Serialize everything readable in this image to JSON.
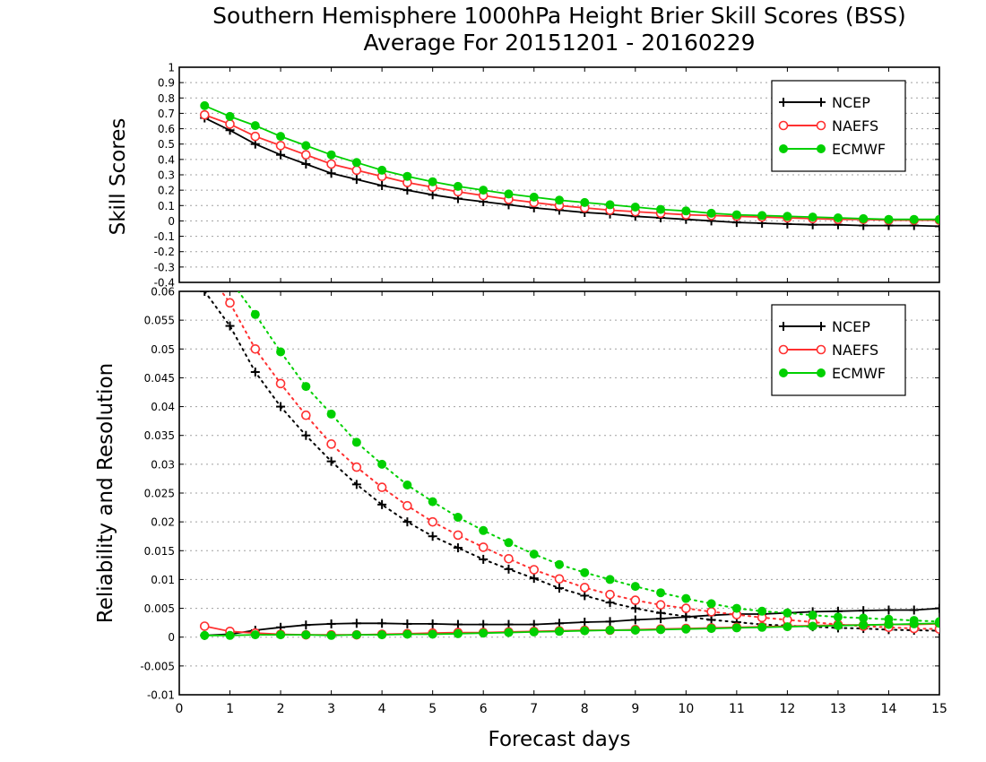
{
  "title_line1": "Southern Hemisphere 1000hPa Height Brier Skill Scores (BSS)",
  "title_line2": "Average For 20151201 - 20160229",
  "xlabel": "Forecast days",
  "colors": {
    "NCEP": "#000000",
    "NAEFS": "#ff3030",
    "ECMWF": "#00d000",
    "grid": "#a0a0a0"
  },
  "chart_data": [
    {
      "type": "line",
      "ylabel": "Skill Scores",
      "xlim": [
        0,
        15
      ],
      "ylim": [
        -0.4,
        1
      ],
      "xticks": [
        "0",
        "1",
        "2",
        "3",
        "4",
        "5",
        "6",
        "7",
        "8",
        "9",
        "10",
        "11",
        "12",
        "13",
        "14",
        "15"
      ],
      "yticks": [
        "-0.4",
        "-0.3",
        "-0.2",
        "-0.1",
        "0",
        "0.1",
        "0.2",
        "0.3",
        "0.4",
        "0.5",
        "0.6",
        "0.7",
        "0.8",
        "0.9",
        "1"
      ],
      "grid": true,
      "legend_position": "top-right",
      "legend": [
        "NCEP",
        "NAEFS",
        "ECMWF"
      ],
      "x": [
        0.5,
        1,
        1.5,
        2,
        2.5,
        3,
        3.5,
        4,
        4.5,
        5,
        5.5,
        6,
        6.5,
        7,
        7.5,
        8,
        8.5,
        9,
        9.5,
        10,
        10.5,
        11,
        11.5,
        12,
        12.5,
        13,
        13.5,
        14,
        14.5,
        15
      ],
      "series": [
        {
          "name": "NCEP",
          "style": "solid-plus",
          "values": [
            0.67,
            0.59,
            0.5,
            0.43,
            0.37,
            0.31,
            0.27,
            0.23,
            0.2,
            0.17,
            0.145,
            0.125,
            0.105,
            0.085,
            0.07,
            0.055,
            0.045,
            0.03,
            0.02,
            0.01,
            0.0,
            -0.01,
            -0.015,
            -0.02,
            -0.025,
            -0.025,
            -0.03,
            -0.03,
            -0.03,
            -0.035
          ]
        },
        {
          "name": "NAEFS",
          "style": "solid-circle",
          "values": [
            0.69,
            0.63,
            0.55,
            0.49,
            0.43,
            0.37,
            0.33,
            0.29,
            0.25,
            0.22,
            0.19,
            0.165,
            0.14,
            0.12,
            0.1,
            0.085,
            0.07,
            0.06,
            0.05,
            0.04,
            0.035,
            0.03,
            0.025,
            0.02,
            0.015,
            0.01,
            0.01,
            0.005,
            0.005,
            0.005
          ]
        },
        {
          "name": "ECMWF",
          "style": "solid-dot",
          "values": [
            0.75,
            0.68,
            0.62,
            0.55,
            0.49,
            0.43,
            0.38,
            0.33,
            0.29,
            0.255,
            0.225,
            0.2,
            0.175,
            0.155,
            0.135,
            0.12,
            0.105,
            0.09,
            0.075,
            0.065,
            0.05,
            0.04,
            0.035,
            0.03,
            0.025,
            0.02,
            0.015,
            0.01,
            0.01,
            0.01
          ]
        }
      ]
    },
    {
      "type": "line",
      "ylabel": "Reliability and Resolution",
      "xlim": [
        0,
        15
      ],
      "ylim": [
        -0.01,
        0.06
      ],
      "xticks": [
        "0",
        "1",
        "2",
        "3",
        "4",
        "5",
        "6",
        "7",
        "8",
        "9",
        "10",
        "11",
        "12",
        "13",
        "14",
        "15"
      ],
      "yticks": [
        "-0.01",
        "-0.005",
        "0",
        "0.005",
        "0.01",
        "0.015",
        "0.02",
        "0.025",
        "0.03",
        "0.035",
        "0.04",
        "0.045",
        "0.05",
        "0.055",
        "0.06"
      ],
      "grid": true,
      "legend_position": "top-right",
      "legend": [
        "NCEP",
        "NAEFS",
        "ECMWF"
      ],
      "x": [
        0.5,
        1,
        1.5,
        2,
        2.5,
        3,
        3.5,
        4,
        4.5,
        5,
        5.5,
        6,
        6.5,
        7,
        7.5,
        8,
        8.5,
        9,
        9.5,
        10,
        10.5,
        11,
        11.5,
        12,
        12.5,
        13,
        13.5,
        14,
        14.5,
        15
      ],
      "series": [
        {
          "name": "NCEP",
          "kind": "reliability",
          "style": "solid-plus",
          "values": [
            0.0003,
            0.0005,
            0.0012,
            0.0017,
            0.0021,
            0.0023,
            0.0024,
            0.0024,
            0.0023,
            0.0023,
            0.0022,
            0.0022,
            0.0022,
            0.0022,
            0.0024,
            0.0026,
            0.0027,
            0.003,
            0.0032,
            0.0035,
            0.0038,
            0.004,
            0.004,
            0.0042,
            0.0044,
            0.0045,
            0.0046,
            0.0047,
            0.0047,
            0.005
          ]
        },
        {
          "name": "NCEP",
          "kind": "resolution",
          "style": "dotted-plus",
          "values": [
            0.06,
            0.054,
            0.046,
            0.04,
            0.035,
            0.0305,
            0.0265,
            0.023,
            0.02,
            0.0175,
            0.0155,
            0.0135,
            0.0118,
            0.0102,
            0.0085,
            0.0072,
            0.006,
            0.005,
            0.0042,
            0.0036,
            0.003,
            0.0026,
            0.0022,
            0.002,
            0.0018,
            0.0016,
            0.0015,
            0.0013,
            0.0012,
            0.0011
          ]
        },
        {
          "name": "NAEFS",
          "kind": "reliability",
          "style": "solid-circle",
          "values": [
            0.0019,
            0.001,
            0.0007,
            0.0005,
            0.0004,
            0.0004,
            0.0004,
            0.0005,
            0.0006,
            0.0007,
            0.0008,
            0.0008,
            0.0009,
            0.001,
            0.0011,
            0.0012,
            0.0012,
            0.0013,
            0.0014,
            0.0015,
            0.0016,
            0.0017,
            0.0018,
            0.0019,
            0.002,
            0.0021,
            0.0021,
            0.0022,
            0.0022,
            0.0023
          ]
        },
        {
          "name": "NAEFS",
          "kind": "resolution",
          "style": "dotted-circle",
          "values": [
            0.064,
            0.058,
            0.05,
            0.044,
            0.0385,
            0.0335,
            0.0295,
            0.026,
            0.0228,
            0.02,
            0.0177,
            0.0156,
            0.0136,
            0.0117,
            0.0101,
            0.0086,
            0.0074,
            0.0064,
            0.0056,
            0.005,
            0.0044,
            0.0039,
            0.0034,
            0.003,
            0.0026,
            0.0022,
            0.0019,
            0.0017,
            0.0015,
            0.0014
          ]
        },
        {
          "name": "ECMWF",
          "kind": "reliability",
          "style": "solid-dot",
          "values": [
            0.0003,
            0.0003,
            0.0004,
            0.0004,
            0.0004,
            0.0003,
            0.0004,
            0.0004,
            0.0005,
            0.0005,
            0.0006,
            0.0007,
            0.0008,
            0.0009,
            0.001,
            0.0011,
            0.0012,
            0.0012,
            0.0013,
            0.0014,
            0.0015,
            0.0016,
            0.0017,
            0.0018,
            0.0019,
            0.002,
            0.0021,
            0.0022,
            0.0023,
            0.0024
          ]
        },
        {
          "name": "ECMWF",
          "kind": "resolution",
          "style": "dotted-dot",
          "values": [
            0.068,
            0.062,
            0.056,
            0.0495,
            0.0435,
            0.0387,
            0.0338,
            0.03,
            0.0264,
            0.0235,
            0.0208,
            0.0185,
            0.0164,
            0.0144,
            0.0126,
            0.0112,
            0.01,
            0.0088,
            0.0077,
            0.0067,
            0.0058,
            0.005,
            0.0045,
            0.0042,
            0.0038,
            0.0035,
            0.0033,
            0.0031,
            0.0029,
            0.0027
          ]
        }
      ]
    }
  ]
}
